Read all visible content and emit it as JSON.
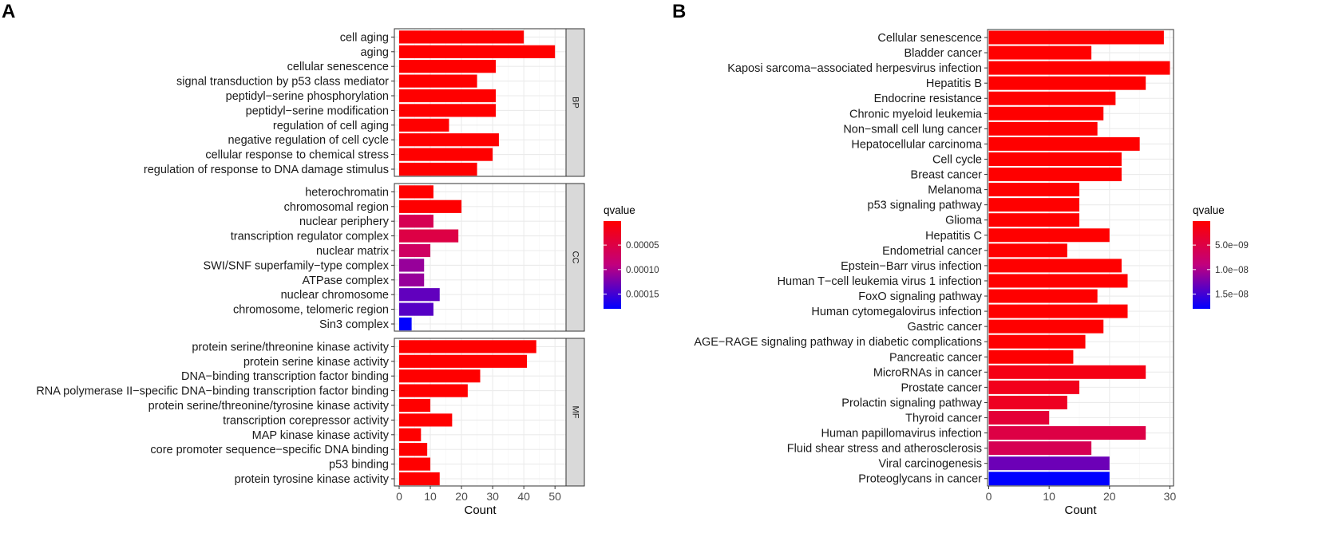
{
  "chart_data": [
    {
      "panel_label": "A",
      "type": "bar",
      "orientation": "horizontal",
      "xlabel": "Count",
      "xlim": [
        0,
        52
      ],
      "xticks": [
        0,
        10,
        20,
        30,
        40,
        50
      ],
      "legend": {
        "title": "qvalue",
        "position": "right",
        "ticks": [
          5e-05,
          0.0001,
          0.00015
        ],
        "tick_labels": [
          "0.00005",
          "0.00010",
          "0.00015"
        ],
        "range": [
          1e-06,
          0.00018
        ],
        "color_low_q": "#ff0000",
        "color_high_q": "#0000ff"
      },
      "facets": [
        {
          "name": "BP",
          "rows": [
            {
              "term": "cell aging",
              "count": 40,
              "qvalue": 1e-06
            },
            {
              "term": "aging",
              "count": 50,
              "qvalue": 1e-06
            },
            {
              "term": "cellular senescence",
              "count": 31,
              "qvalue": 1e-06
            },
            {
              "term": "signal transduction by p53 class mediator",
              "count": 25,
              "qvalue": 1e-06
            },
            {
              "term": "peptidyl−serine phosphorylation",
              "count": 31,
              "qvalue": 1e-06
            },
            {
              "term": "peptidyl−serine modification",
              "count": 31,
              "qvalue": 1e-06
            },
            {
              "term": "regulation of cell aging",
              "count": 16,
              "qvalue": 1e-06
            },
            {
              "term": "negative regulation of cell cycle",
              "count": 32,
              "qvalue": 1e-06
            },
            {
              "term": "cellular response to chemical stress",
              "count": 30,
              "qvalue": 1e-06
            },
            {
              "term": "regulation of response to DNA damage stimulus",
              "count": 25,
              "qvalue": 1e-06
            }
          ]
        },
        {
          "name": "CC",
          "rows": [
            {
              "term": "heterochromatin",
              "count": 11,
              "qvalue": 1e-06
            },
            {
              "term": "chromosomal region",
              "count": 20,
              "qvalue": 2e-06
            },
            {
              "term": "nuclear periphery",
              "count": 11,
              "qvalue": 6e-05
            },
            {
              "term": "transcription regulator complex",
              "count": 19,
              "qvalue": 5e-05
            },
            {
              "term": "nuclear matrix",
              "count": 10,
              "qvalue": 7e-05
            },
            {
              "term": "SWI/SNF superfamily−type complex",
              "count": 8,
              "qvalue": 0.00011
            },
            {
              "term": "ATPase complex",
              "count": 8,
              "qvalue": 0.00011
            },
            {
              "term": "nuclear chromosome",
              "count": 13,
              "qvalue": 0.000135
            },
            {
              "term": "chromosome, telomeric region",
              "count": 11,
              "qvalue": 0.00014
            },
            {
              "term": "Sin3 complex",
              "count": 4,
              "qvalue": 0.00018
            }
          ]
        },
        {
          "name": "MF",
          "rows": [
            {
              "term": "protein serine/threonine kinase activity",
              "count": 44,
              "qvalue": 1e-06
            },
            {
              "term": "protein serine kinase activity",
              "count": 41,
              "qvalue": 1e-06
            },
            {
              "term": "DNA−binding transcription factor binding",
              "count": 26,
              "qvalue": 1e-06
            },
            {
              "term": "RNA polymerase II−specific DNA−binding transcription factor binding",
              "count": 22,
              "qvalue": 1e-06
            },
            {
              "term": "protein serine/threonine/tyrosine kinase activity",
              "count": 10,
              "qvalue": 1e-06
            },
            {
              "term": "transcription corepressor activity",
              "count": 17,
              "qvalue": 1e-06
            },
            {
              "term": "MAP kinase kinase activity",
              "count": 7,
              "qvalue": 1e-06
            },
            {
              "term": "core promoter sequence−specific DNA binding",
              "count": 9,
              "qvalue": 1e-06
            },
            {
              "term": "p53 binding",
              "count": 10,
              "qvalue": 1e-06
            },
            {
              "term": "protein tyrosine kinase activity",
              "count": 13,
              "qvalue": 1e-06
            }
          ]
        }
      ]
    },
    {
      "panel_label": "B",
      "type": "bar",
      "orientation": "horizontal",
      "xlabel": "Count",
      "xlim": [
        -0.2,
        30.6
      ],
      "xticks": [
        0,
        10,
        20,
        30
      ],
      "legend": {
        "title": "qvalue",
        "position": "right",
        "ticks": [
          5e-09,
          1e-08,
          1.5e-08
        ],
        "tick_labels": [
          "5.0e−09",
          "1.0e−08",
          "1.5e−08"
        ],
        "range": [
          1e-10,
          1.8e-08
        ],
        "color_low_q": "#ff0000",
        "color_high_q": "#0000ff"
      },
      "rows": [
        {
          "term": "Cellular senescence",
          "count": 29,
          "qvalue": 1e-10
        },
        {
          "term": "Bladder cancer",
          "count": 17,
          "qvalue": 1e-10
        },
        {
          "term": "Kaposi sarcoma−associated herpesvirus infection",
          "count": 30,
          "qvalue": 1e-10
        },
        {
          "term": "Hepatitis B",
          "count": 26,
          "qvalue": 1e-10
        },
        {
          "term": "Endocrine resistance",
          "count": 21,
          "qvalue": 1e-10
        },
        {
          "term": "Chronic myeloid leukemia",
          "count": 19,
          "qvalue": 1e-10
        },
        {
          "term": "Non−small cell lung cancer",
          "count": 18,
          "qvalue": 1e-10
        },
        {
          "term": "Hepatocellular carcinoma",
          "count": 25,
          "qvalue": 1e-10
        },
        {
          "term": "Cell cycle",
          "count": 22,
          "qvalue": 1e-10
        },
        {
          "term": "Breast cancer",
          "count": 22,
          "qvalue": 1e-10
        },
        {
          "term": "Melanoma",
          "count": 15,
          "qvalue": 1e-10
        },
        {
          "term": "p53 signaling pathway",
          "count": 15,
          "qvalue": 1e-10
        },
        {
          "term": "Glioma",
          "count": 15,
          "qvalue": 1e-10
        },
        {
          "term": "Hepatitis C",
          "count": 20,
          "qvalue": 1e-10
        },
        {
          "term": "Endometrial cancer",
          "count": 13,
          "qvalue": 1e-10
        },
        {
          "term": "Epstein−Barr virus infection",
          "count": 22,
          "qvalue": 1e-10
        },
        {
          "term": "Human T−cell leukemia virus 1 infection",
          "count": 23,
          "qvalue": 1e-10
        },
        {
          "term": "FoxO signaling pathway",
          "count": 18,
          "qvalue": 1e-10
        },
        {
          "term": "Human cytomegalovirus infection",
          "count": 23,
          "qvalue": 1e-10
        },
        {
          "term": "Gastric cancer",
          "count": 19,
          "qvalue": 1e-10
        },
        {
          "term": "AGE−RAGE signaling pathway in diabetic complications",
          "count": 16,
          "qvalue": 2e-10
        },
        {
          "term": "Pancreatic cancer",
          "count": 14,
          "qvalue": 2e-10
        },
        {
          "term": "MicroRNAs in cancer",
          "count": 26,
          "qvalue": 1.5e-09
        },
        {
          "term": "Prostate cancer",
          "count": 15,
          "qvalue": 2e-09
        },
        {
          "term": "Prolactin signaling pathway",
          "count": 13,
          "qvalue": 2.5e-09
        },
        {
          "term": "Thyroid cancer",
          "count": 10,
          "qvalue": 4e-09
        },
        {
          "term": "Human papillomavirus infection",
          "count": 26,
          "qvalue": 5e-09
        },
        {
          "term": "Fluid shear stress and atherosclerosis",
          "count": 17,
          "qvalue": 6e-09
        },
        {
          "term": "Viral carcinogenesis",
          "count": 20,
          "qvalue": 1.3e-08
        },
        {
          "term": "Proteoglycans in cancer",
          "count": 20,
          "qvalue": 1.8e-08
        }
      ]
    }
  ]
}
